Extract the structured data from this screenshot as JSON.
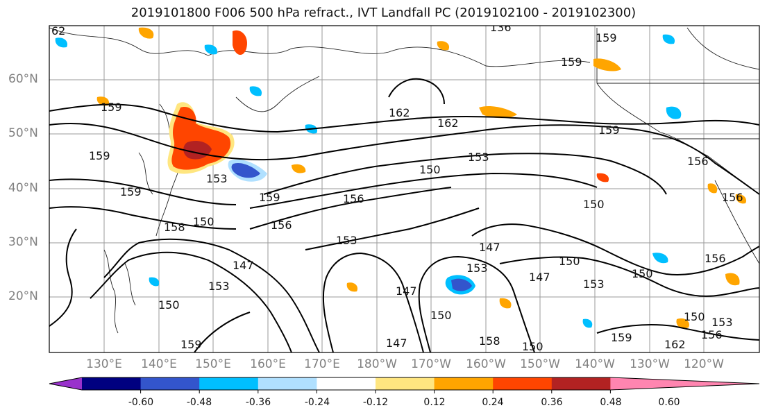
{
  "title": "2019101800 F006 500 hPa refract., IVT Landfall PC (2019102100 - 2019102300)",
  "lat_labels": [
    "60°N",
    "50°N",
    "40°N",
    "30°N",
    "20°N"
  ],
  "lon_labels": [
    "130°E",
    "140°E",
    "150°E",
    "160°E",
    "170°E",
    "180°W",
    "170°W",
    "160°W",
    "150°W",
    "140°W",
    "130°W",
    "120°W"
  ],
  "colorbar": {
    "ticks": [
      "-0.60",
      "-0.48",
      "-0.36",
      "-0.24",
      "-0.12",
      "0.12",
      "0.24",
      "0.36",
      "0.48",
      "0.60"
    ],
    "colors": [
      "#9932cc",
      "#000080",
      "#3355cc",
      "#00bfff",
      "#b0e0ff",
      "#ffffff",
      "#ffe680",
      "#ffa500",
      "#ff4500",
      "#b22222",
      "#ff85b0"
    ]
  },
  "contour_labels": [
    "62",
    "136",
    "159",
    "159",
    "159",
    "159",
    "162",
    "162",
    "159",
    "153",
    "150",
    "153",
    "156",
    "156",
    "159",
    "159",
    "150",
    "158",
    "156",
    "153",
    "150",
    "147",
    "147",
    "150",
    "147",
    "153",
    "150",
    "153",
    "150",
    "147",
    "150",
    "153",
    "159",
    "147",
    "158",
    "150",
    "162",
    "159",
    "156",
    "156",
    "150",
    "153",
    "156"
  ]
}
